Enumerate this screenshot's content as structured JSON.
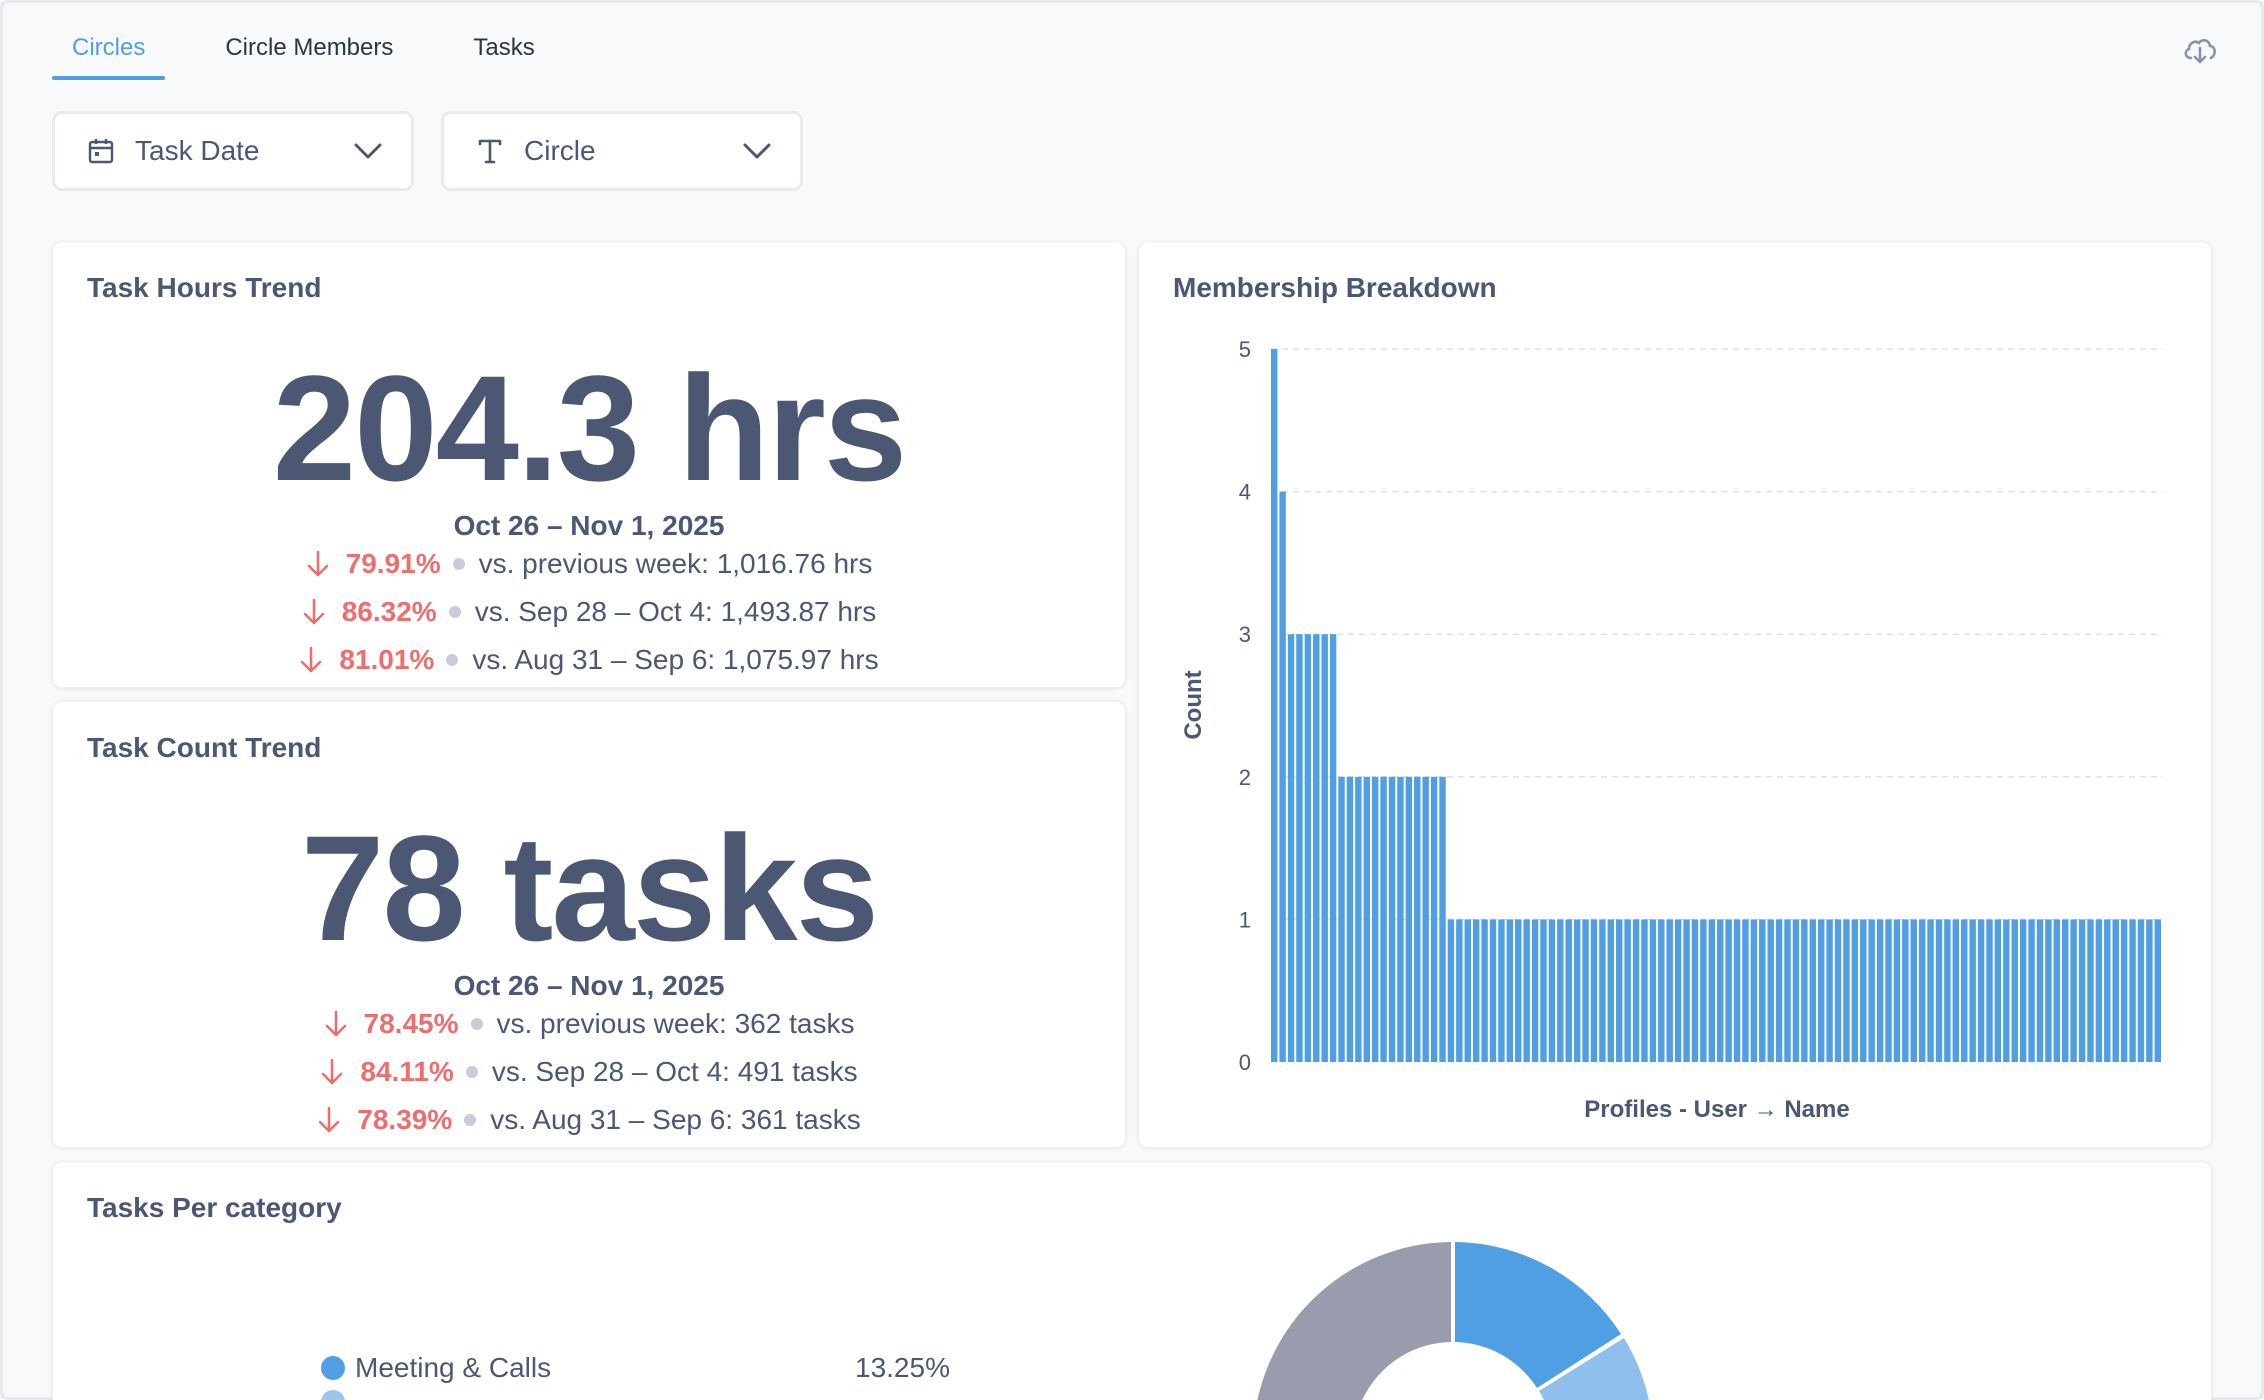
{
  "tabs": [
    {
      "label": "Circles",
      "active": true
    },
    {
      "label": "Circle Members",
      "active": false
    },
    {
      "label": "Tasks",
      "active": false
    }
  ],
  "filters": [
    {
      "label": "Task Date",
      "icon": "calendar-icon"
    },
    {
      "label": "Circle",
      "icon": "text-icon"
    }
  ],
  "task_hours": {
    "title": "Task Hours Trend",
    "value": "204.3 hrs",
    "range": "Oct 26 – Nov 1, 2025",
    "comparisons": [
      {
        "pct": "79.91%",
        "text": "vs. previous week: 1,016.76 hrs"
      },
      {
        "pct": "86.32%",
        "text": "vs. Sep 28 – Oct 4: 1,493.87 hrs"
      },
      {
        "pct": "81.01%",
        "text": "vs. Aug 31 – Sep 6: 1,075.97 hrs"
      }
    ]
  },
  "task_count": {
    "title": "Task Count Trend",
    "value": "78 tasks",
    "range": "Oct 26 – Nov 1, 2025",
    "comparisons": [
      {
        "pct": "78.45%",
        "text": "vs. previous week: 362 tasks"
      },
      {
        "pct": "84.11%",
        "text": "vs. Sep 28 – Oct 4: 491 tasks"
      },
      {
        "pct": "78.39%",
        "text": "vs. Aug 31 – Sep 6: 361 tasks"
      }
    ]
  },
  "membership": {
    "title": "Membership Breakdown"
  },
  "tasks_per_category": {
    "title": "Tasks Per category",
    "legend": [
      {
        "label": "Meeting & Calls",
        "pct": "13.25%",
        "color": "#509ee3"
      }
    ]
  },
  "colors": {
    "accent": "#509ee3",
    "negative": "#ed6e6e",
    "text": "#4c5773",
    "donut_gray": "#989cac",
    "donut_light_blue": "#8fbfec"
  },
  "chart_data": {
    "type": "bar",
    "title": "Membership Breakdown",
    "xlabel": "Profiles - User → Name",
    "ylabel": "Count",
    "ylim": [
      0,
      5
    ],
    "yticks": [
      0,
      1,
      2,
      3,
      4,
      5
    ],
    "grid": true,
    "series": [
      {
        "values": [
          5,
          4,
          3,
          3,
          3,
          3,
          3,
          3,
          2,
          2,
          2,
          2,
          2,
          2,
          2,
          2,
          2,
          2,
          2,
          2,
          2,
          1,
          1,
          1,
          1,
          1,
          1,
          1,
          1,
          1,
          1,
          1,
          1,
          1,
          1,
          1,
          1,
          1,
          1,
          1,
          1,
          1,
          1,
          1,
          1,
          1,
          1,
          1,
          1,
          1,
          1,
          1,
          1,
          1,
          1,
          1,
          1,
          1,
          1,
          1,
          1,
          1,
          1,
          1,
          1,
          1,
          1,
          1,
          1,
          1,
          1,
          1,
          1,
          1,
          1,
          1,
          1,
          1,
          1,
          1,
          1,
          1,
          1,
          1,
          1,
          1,
          1,
          1,
          1,
          1,
          1,
          1,
          1,
          1,
          1,
          1,
          1,
          1,
          1,
          1,
          1,
          1,
          1,
          1,
          1,
          1
        ]
      }
    ]
  }
}
